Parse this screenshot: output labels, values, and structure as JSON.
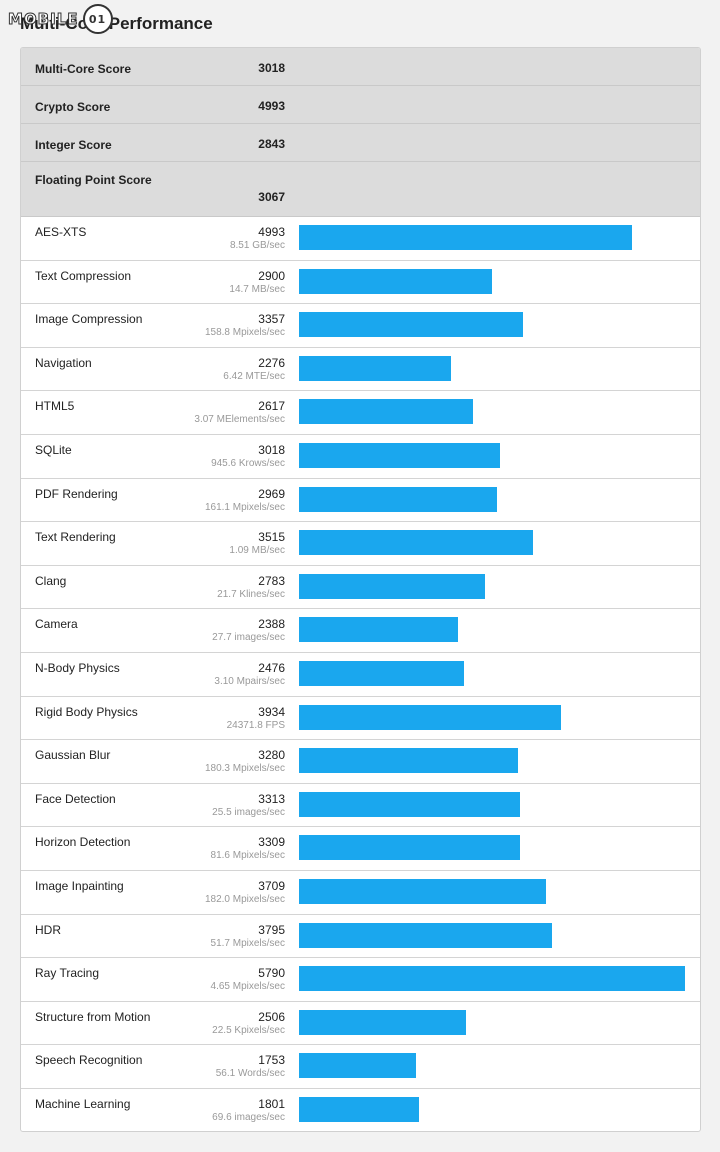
{
  "site": {
    "logo_text": "MOBILE",
    "logo_mark": "01"
  },
  "title": "Multi-Core Performance",
  "summary": [
    {
      "label": "Multi-Core Score",
      "value": "3018"
    },
    {
      "label": "Crypto Score",
      "value": "4993"
    },
    {
      "label": "Integer Score",
      "value": "2843"
    },
    {
      "label": "Floating Point Score",
      "value": "3067"
    }
  ],
  "chart_data": {
    "type": "bar",
    "orientation": "horizontal",
    "title": "Multi-Core Performance",
    "bar_color": "#1aa7ee",
    "xlim": [
      0,
      5790
    ],
    "categories": [
      "AES-XTS",
      "Text Compression",
      "Image Compression",
      "Navigation",
      "HTML5",
      "SQLite",
      "PDF Rendering",
      "Text Rendering",
      "Clang",
      "Camera",
      "N-Body Physics",
      "Rigid Body Physics",
      "Gaussian Blur",
      "Face Detection",
      "Horizon Detection",
      "Image Inpainting",
      "HDR",
      "Ray Tracing",
      "Structure from Motion",
      "Speech Recognition",
      "Machine Learning"
    ],
    "values": [
      4993,
      2900,
      3357,
      2276,
      2617,
      3018,
      2969,
      3515,
      2783,
      2388,
      2476,
      3934,
      3280,
      3313,
      3309,
      3709,
      3795,
      5790,
      2506,
      1753,
      1801
    ],
    "rates": [
      "8.51 GB/sec",
      "14.7 MB/sec",
      "158.8 Mpixels/sec",
      "6.42 MTE/sec",
      "3.07 MElements/sec",
      "945.6 Krows/sec",
      "161.1 Mpixels/sec",
      "1.09 MB/sec",
      "21.7 Klines/sec",
      "27.7 images/sec",
      "3.10 Mpairs/sec",
      "24371.8 FPS",
      "180.3 Mpixels/sec",
      "25.5 images/sec",
      "81.6 Mpixels/sec",
      "182.0 Mpixels/sec",
      "51.7 Mpixels/sec",
      "4.65 Mpixels/sec",
      "22.5 Kpixels/sec",
      "56.1 Words/sec",
      "69.6 images/sec"
    ]
  }
}
